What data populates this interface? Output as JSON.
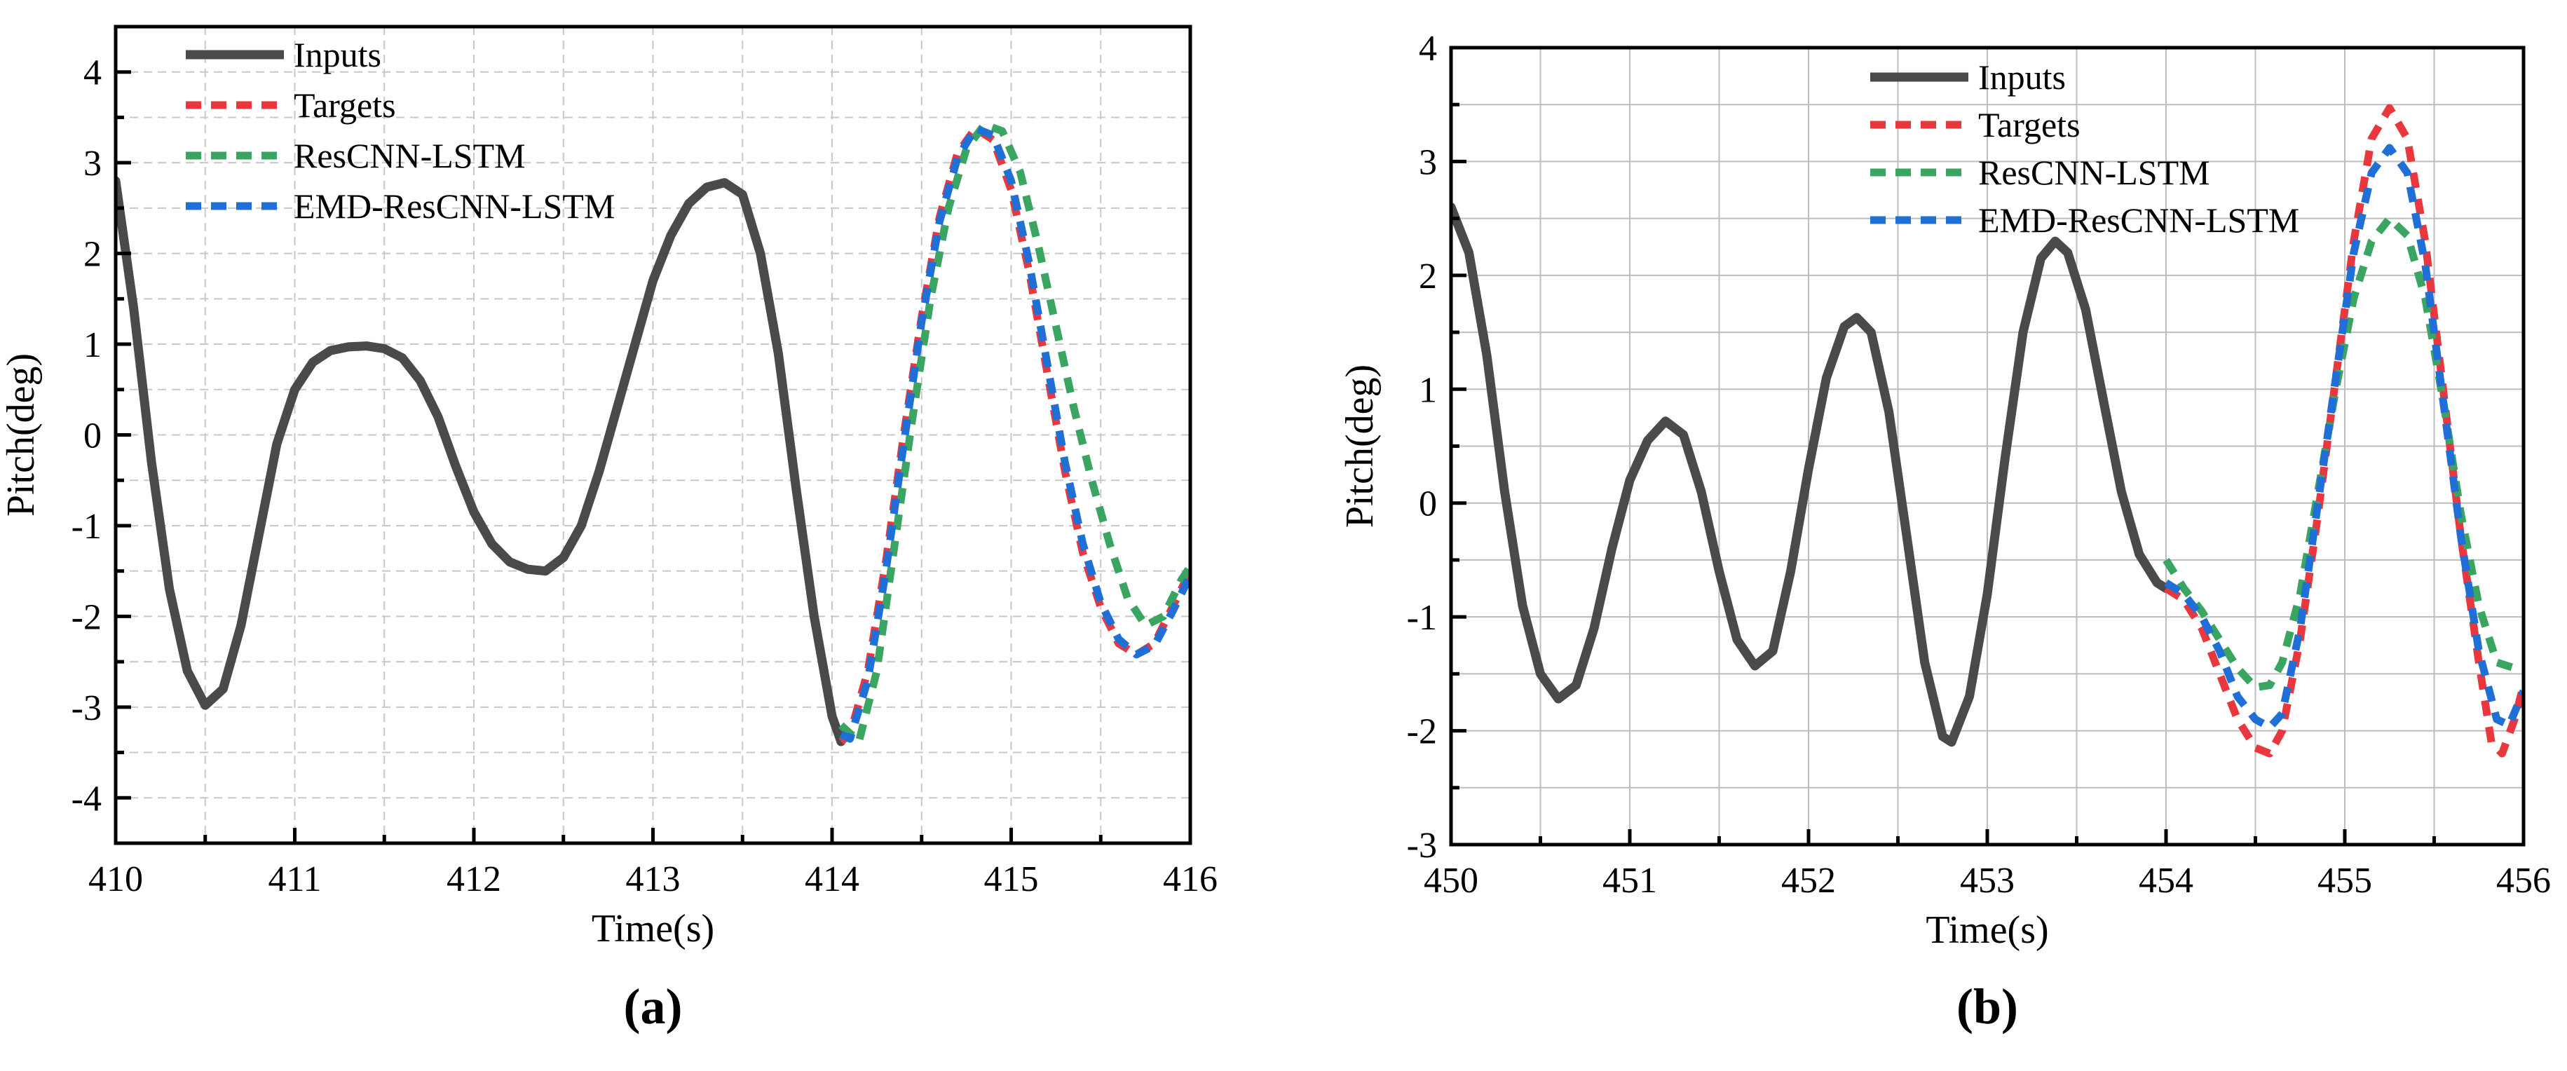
{
  "chart_data": [
    {
      "type": "line",
      "panel_label": "(a)",
      "xlabel": "Time(s)",
      "ylabel": "Pitch(deg)",
      "xlim": [
        410,
        416
      ],
      "ylim": [
        -4.5,
        4.5
      ],
      "xticks": [
        410,
        411,
        412,
        413,
        414,
        415,
        416
      ],
      "yticks": [
        -4,
        -3,
        -2,
        -1,
        0,
        1,
        2,
        3,
        4
      ],
      "grid": "dashed",
      "legend_position": "top-left",
      "series": [
        {
          "name": "Inputs",
          "color": "#4a4a4a",
          "style": "solid",
          "points": [
            [
              410,
              2.8
            ],
            [
              410.1,
              1.4
            ],
            [
              410.2,
              -0.3
            ],
            [
              410.3,
              -1.7
            ],
            [
              410.4,
              -2.6
            ],
            [
              410.5,
              -2.98
            ],
            [
              410.6,
              -2.8
            ],
            [
              410.7,
              -2.1
            ],
            [
              410.8,
              -1.1
            ],
            [
              410.9,
              -0.1
            ],
            [
              411.0,
              0.5
            ],
            [
              411.1,
              0.8
            ],
            [
              411.2,
              0.93
            ],
            [
              411.3,
              0.97
            ],
            [
              411.4,
              0.98
            ],
            [
              411.5,
              0.95
            ],
            [
              411.6,
              0.85
            ],
            [
              411.7,
              0.6
            ],
            [
              411.8,
              0.2
            ],
            [
              411.9,
              -0.35
            ],
            [
              412.0,
              -0.85
            ],
            [
              412.1,
              -1.2
            ],
            [
              412.2,
              -1.4
            ],
            [
              412.3,
              -1.48
            ],
            [
              412.4,
              -1.5
            ],
            [
              412.5,
              -1.35
            ],
            [
              412.6,
              -1.0
            ],
            [
              412.7,
              -0.4
            ],
            [
              412.8,
              0.3
            ],
            [
              412.9,
              1.0
            ],
            [
              413.0,
              1.7
            ],
            [
              413.1,
              2.2
            ],
            [
              413.2,
              2.55
            ],
            [
              413.3,
              2.73
            ],
            [
              413.4,
              2.78
            ],
            [
              413.5,
              2.65
            ],
            [
              413.6,
              2.0
            ],
            [
              413.7,
              0.9
            ],
            [
              413.8,
              -0.6
            ],
            [
              413.9,
              -2.0
            ],
            [
              414.0,
              -3.1
            ],
            [
              414.05,
              -3.38
            ]
          ]
        },
        {
          "name": "Targets",
          "color": "#e8383d",
          "style": "dashed",
          "points": [
            [
              414.05,
              -3.38
            ],
            [
              414.1,
              -3.3
            ],
            [
              414.2,
              -2.6
            ],
            [
              414.3,
              -1.4
            ],
            [
              414.4,
              0.0
            ],
            [
              414.5,
              1.3
            ],
            [
              414.6,
              2.4
            ],
            [
              414.7,
              3.1
            ],
            [
              414.8,
              3.38
            ],
            [
              414.9,
              3.25
            ],
            [
              415.0,
              2.7
            ],
            [
              415.1,
              1.8
            ],
            [
              415.2,
              0.7
            ],
            [
              415.3,
              -0.4
            ],
            [
              415.4,
              -1.3
            ],
            [
              415.5,
              -1.9
            ],
            [
              415.6,
              -2.3
            ],
            [
              415.7,
              -2.42
            ],
            [
              415.8,
              -2.3
            ],
            [
              415.9,
              -1.9
            ],
            [
              416.0,
              -1.5
            ]
          ]
        },
        {
          "name": "ResCNN-LSTM",
          "color": "#3aa561",
          "style": "dashed",
          "points": [
            [
              414.05,
              -3.2
            ],
            [
              414.15,
              -3.38
            ],
            [
              414.25,
              -2.6
            ],
            [
              414.35,
              -1.2
            ],
            [
              414.45,
              0.2
            ],
            [
              414.55,
              1.5
            ],
            [
              414.65,
              2.5
            ],
            [
              414.75,
              3.15
            ],
            [
              414.85,
              3.42
            ],
            [
              414.95,
              3.35
            ],
            [
              415.05,
              2.9
            ],
            [
              415.15,
              2.1
            ],
            [
              415.25,
              1.2
            ],
            [
              415.35,
              0.3
            ],
            [
              415.45,
              -0.5
            ],
            [
              415.55,
              -1.2
            ],
            [
              415.65,
              -1.8
            ],
            [
              415.75,
              -2.1
            ],
            [
              415.85,
              -2.0
            ],
            [
              415.95,
              -1.6
            ],
            [
              416.0,
              -1.45
            ]
          ]
        },
        {
          "name": "EMD-ResCNN-LSTM",
          "color": "#1f6fd6",
          "style": "dashed",
          "points": [
            [
              414.05,
              -3.3
            ],
            [
              414.1,
              -3.35
            ],
            [
              414.2,
              -2.7
            ],
            [
              414.3,
              -1.5
            ],
            [
              414.4,
              -0.1
            ],
            [
              414.5,
              1.25
            ],
            [
              414.6,
              2.35
            ],
            [
              414.7,
              3.05
            ],
            [
              414.8,
              3.38
            ],
            [
              414.9,
              3.3
            ],
            [
              415.0,
              2.8
            ],
            [
              415.1,
              1.9
            ],
            [
              415.2,
              0.8
            ],
            [
              415.3,
              -0.3
            ],
            [
              415.4,
              -1.2
            ],
            [
              415.5,
              -1.85
            ],
            [
              415.6,
              -2.25
            ],
            [
              415.7,
              -2.42
            ],
            [
              415.8,
              -2.32
            ],
            [
              415.9,
              -1.95
            ],
            [
              416.0,
              -1.55
            ]
          ]
        }
      ]
    },
    {
      "type": "line",
      "panel_label": "(b)",
      "xlabel": "Time(s)",
      "ylabel": "Pitch(deg)",
      "xlim": [
        450,
        456
      ],
      "ylim": [
        -3,
        4
      ],
      "xticks": [
        450,
        451,
        452,
        453,
        454,
        455,
        456
      ],
      "yticks": [
        -3,
        -2,
        -1,
        0,
        1,
        2,
        3,
        4
      ],
      "grid": "solid",
      "legend_position": "top-center",
      "series": [
        {
          "name": "Inputs",
          "color": "#4a4a4a",
          "style": "solid",
          "points": [
            [
              450,
              2.6
            ],
            [
              450.1,
              2.2
            ],
            [
              450.2,
              1.3
            ],
            [
              450.3,
              0.1
            ],
            [
              450.4,
              -0.9
            ],
            [
              450.5,
              -1.5
            ],
            [
              450.6,
              -1.72
            ],
            [
              450.7,
              -1.6
            ],
            [
              450.8,
              -1.1
            ],
            [
              450.9,
              -0.4
            ],
            [
              451.0,
              0.2
            ],
            [
              451.1,
              0.55
            ],
            [
              451.2,
              0.72
            ],
            [
              451.3,
              0.6
            ],
            [
              451.4,
              0.1
            ],
            [
              451.5,
              -0.6
            ],
            [
              451.6,
              -1.2
            ],
            [
              451.7,
              -1.43
            ],
            [
              451.8,
              -1.3
            ],
            [
              451.9,
              -0.6
            ],
            [
              452.0,
              0.3
            ],
            [
              452.1,
              1.1
            ],
            [
              452.2,
              1.55
            ],
            [
              452.27,
              1.63
            ],
            [
              452.35,
              1.5
            ],
            [
              452.45,
              0.8
            ],
            [
              452.55,
              -0.3
            ],
            [
              452.65,
              -1.4
            ],
            [
              452.75,
              -2.05
            ],
            [
              452.8,
              -2.1
            ],
            [
              452.9,
              -1.7
            ],
            [
              453.0,
              -0.8
            ],
            [
              453.1,
              0.4
            ],
            [
              453.2,
              1.5
            ],
            [
              453.3,
              2.15
            ],
            [
              453.38,
              2.3
            ],
            [
              453.45,
              2.2
            ],
            [
              453.55,
              1.7
            ],
            [
              453.65,
              0.9
            ],
            [
              453.75,
              0.1
            ],
            [
              453.85,
              -0.45
            ],
            [
              453.95,
              -0.7
            ],
            [
              454.0,
              -0.75
            ]
          ]
        },
        {
          "name": "Targets",
          "color": "#e8383d",
          "style": "dashed",
          "points": [
            [
              454.0,
              -0.75
            ],
            [
              454.1,
              -0.85
            ],
            [
              454.2,
              -1.1
            ],
            [
              454.3,
              -1.5
            ],
            [
              454.4,
              -1.9
            ],
            [
              454.5,
              -2.15
            ],
            [
              454.58,
              -2.2
            ],
            [
              454.65,
              -2.0
            ],
            [
              454.75,
              -1.2
            ],
            [
              454.85,
              -0.1
            ],
            [
              454.95,
              1.1
            ],
            [
              455.05,
              2.3
            ],
            [
              455.15,
              3.2
            ],
            [
              455.25,
              3.47
            ],
            [
              455.35,
              3.2
            ],
            [
              455.45,
              2.3
            ],
            [
              455.55,
              1.0
            ],
            [
              455.65,
              -0.3
            ],
            [
              455.75,
              -1.4
            ],
            [
              455.82,
              -2.1
            ],
            [
              455.88,
              -2.2
            ],
            [
              455.95,
              -1.9
            ],
            [
              456.0,
              -1.6
            ]
          ]
        },
        {
          "name": "ResCNN-LSTM",
          "color": "#3aa561",
          "style": "dashed",
          "points": [
            [
              454.0,
              -0.5
            ],
            [
              454.1,
              -0.75
            ],
            [
              454.2,
              -0.95
            ],
            [
              454.3,
              -1.2
            ],
            [
              454.4,
              -1.45
            ],
            [
              454.5,
              -1.62
            ],
            [
              454.58,
              -1.6
            ],
            [
              454.65,
              -1.4
            ],
            [
              454.75,
              -0.8
            ],
            [
              454.85,
              0.1
            ],
            [
              454.95,
              1.0
            ],
            [
              455.05,
              1.8
            ],
            [
              455.15,
              2.3
            ],
            [
              455.25,
              2.5
            ],
            [
              455.35,
              2.35
            ],
            [
              455.45,
              1.8
            ],
            [
              455.55,
              0.9
            ],
            [
              455.65,
              -0.1
            ],
            [
              455.75,
              -0.9
            ],
            [
              455.85,
              -1.4
            ],
            [
              455.95,
              -1.45
            ],
            [
              456.0,
              -1.45
            ]
          ]
        },
        {
          "name": "EMD-ResCNN-LSTM",
          "color": "#1f6fd6",
          "style": "dashed",
          "points": [
            [
              454.0,
              -0.7
            ],
            [
              454.1,
              -0.8
            ],
            [
              454.2,
              -1.0
            ],
            [
              454.3,
              -1.3
            ],
            [
              454.4,
              -1.7
            ],
            [
              454.5,
              -1.9
            ],
            [
              454.58,
              -1.97
            ],
            [
              454.65,
              -1.85
            ],
            [
              454.75,
              -1.1
            ],
            [
              454.85,
              0.0
            ],
            [
              454.95,
              1.1
            ],
            [
              455.05,
              2.2
            ],
            [
              455.15,
              2.9
            ],
            [
              455.25,
              3.12
            ],
            [
              455.35,
              2.9
            ],
            [
              455.45,
              2.1
            ],
            [
              455.55,
              0.9
            ],
            [
              455.65,
              -0.3
            ],
            [
              455.75,
              -1.3
            ],
            [
              455.85,
              -1.9
            ],
            [
              455.92,
              -1.95
            ],
            [
              456.0,
              -1.65
            ]
          ]
        }
      ]
    }
  ]
}
